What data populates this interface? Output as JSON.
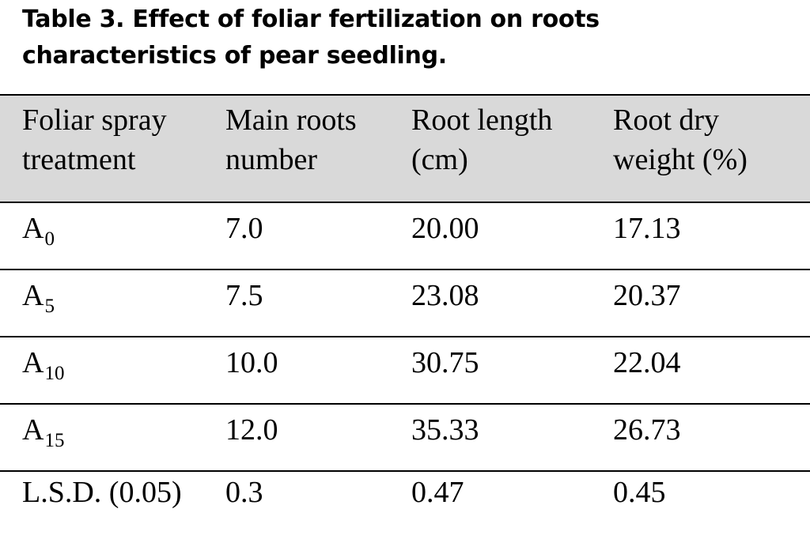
{
  "caption": {
    "line1": "Table 3. Effect of foliar fertilization on roots",
    "line2": "characteristics of pear seedling."
  },
  "table": {
    "headers": [
      {
        "line1": "Foliar spray",
        "line2": "treatment"
      },
      {
        "line1": "Main roots",
        "line2": "number"
      },
      {
        "line1": "Root length",
        "line2": "(cm)"
      },
      {
        "line1": "Root dry",
        "line2": "weight (%)"
      }
    ],
    "rows": [
      {
        "treatment": "A",
        "sub": "0",
        "main_roots": "7.0",
        "root_length": "20.00",
        "root_dry_weight": "17.13"
      },
      {
        "treatment": "A",
        "sub": "5",
        "main_roots": "7.5",
        "root_length": "23.08",
        "root_dry_weight": "20.37"
      },
      {
        "treatment": "A",
        "sub": "10",
        "main_roots": "10.0",
        "root_length": "30.75",
        "root_dry_weight": "22.04"
      },
      {
        "treatment": "A",
        "sub": "15",
        "main_roots": "12.0",
        "root_length": "35.33",
        "root_dry_weight": "26.73"
      },
      {
        "treatment": "L.S.D. (0.05)",
        "sub": "",
        "main_roots": "0.3",
        "root_length": "0.47",
        "root_dry_weight": "0.45"
      }
    ]
  },
  "colors": {
    "header_bg": "#d9d9d9",
    "rule": "#000000",
    "text": "#000000"
  }
}
